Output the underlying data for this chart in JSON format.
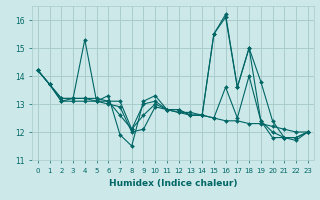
{
  "xlabel": "Humidex (Indice chaleur)",
  "xlim": [
    -0.5,
    23.5
  ],
  "ylim": [
    11,
    16.5
  ],
  "yticks": [
    11,
    12,
    13,
    14,
    15,
    16
  ],
  "xticks": [
    0,
    1,
    2,
    3,
    4,
    5,
    6,
    7,
    8,
    9,
    10,
    11,
    12,
    13,
    14,
    15,
    16,
    17,
    18,
    19,
    20,
    21,
    22,
    23
  ],
  "background_color": "#cde8e8",
  "grid_color": "#aacccc",
  "line_color": "#006666",
  "series": [
    [
      14.2,
      13.7,
      13.1,
      13.2,
      15.3,
      13.1,
      13.3,
      11.9,
      11.5,
      13.1,
      13.3,
      12.8,
      12.8,
      12.6,
      12.6,
      15.5,
      16.2,
      13.6,
      15.0,
      13.8,
      12.4,
      11.8,
      11.7,
      12.0
    ],
    [
      14.2,
      13.7,
      13.1,
      13.1,
      13.1,
      13.1,
      13.1,
      12.6,
      12.1,
      13.0,
      13.1,
      12.8,
      12.8,
      12.6,
      12.6,
      12.5,
      13.6,
      12.5,
      14.0,
      12.4,
      12.0,
      11.8,
      11.8,
      12.0
    ],
    [
      14.2,
      13.7,
      13.2,
      13.2,
      13.2,
      13.2,
      13.1,
      13.1,
      12.1,
      12.6,
      13.0,
      12.8,
      12.7,
      12.7,
      12.6,
      15.5,
      16.1,
      13.6,
      15.0,
      12.4,
      11.8,
      11.8,
      11.8,
      12.0
    ],
    [
      14.2,
      13.7,
      13.2,
      13.2,
      13.2,
      13.1,
      13.0,
      12.9,
      12.0,
      12.1,
      12.9,
      12.8,
      12.7,
      12.6,
      12.6,
      12.5,
      12.4,
      12.4,
      12.3,
      12.3,
      12.2,
      12.1,
      12.0,
      12.0
    ]
  ]
}
